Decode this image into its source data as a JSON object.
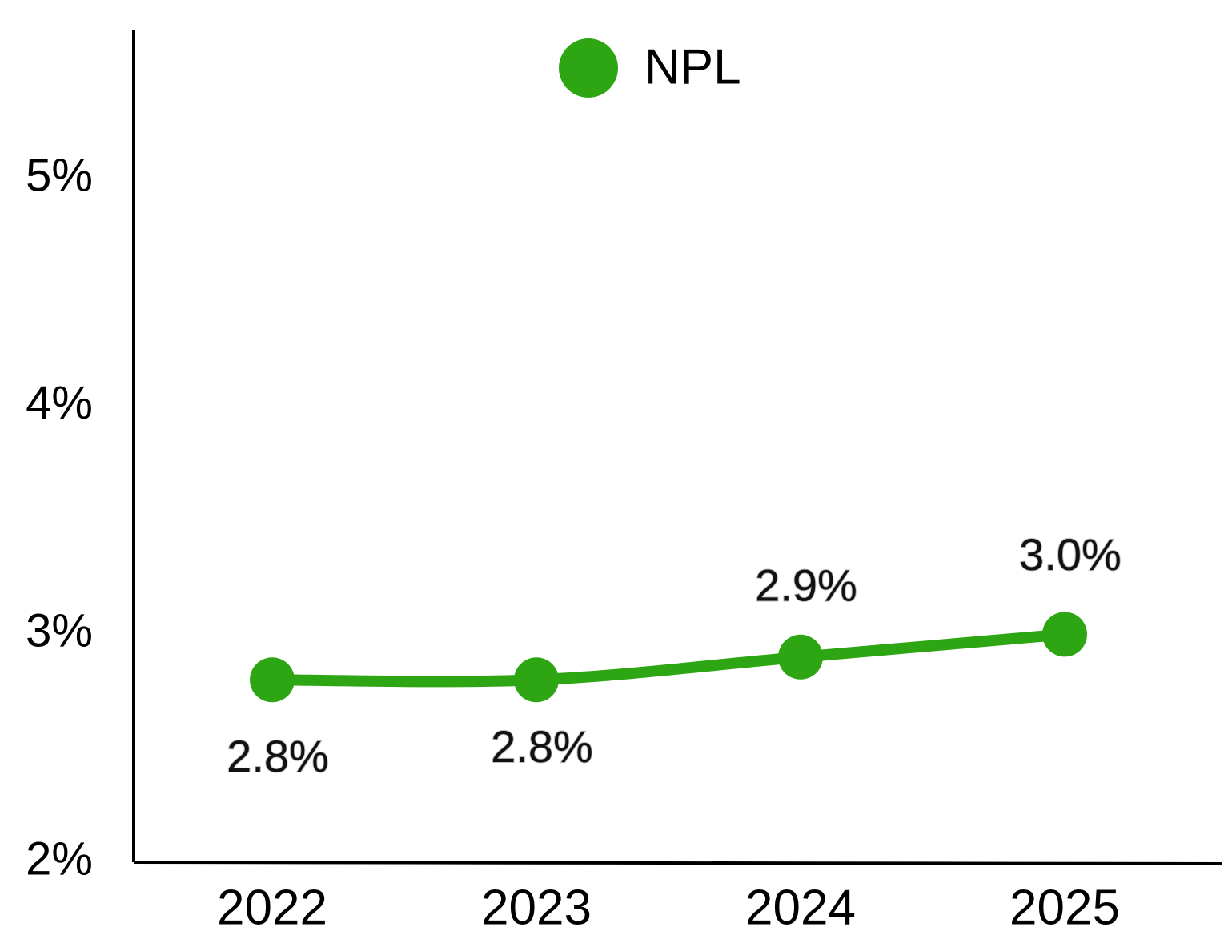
{
  "chart_data": {
    "type": "line",
    "categories": [
      "2022",
      "2023",
      "2024",
      "2025"
    ],
    "series": [
      {
        "name": "NPL",
        "color": "#2ea614",
        "values": [
          2.8,
          2.8,
          2.9,
          3.0
        ],
        "value_labels": [
          "2.8%",
          "2.8%",
          "2.9%",
          "3.0%"
        ]
      }
    ],
    "ylim": [
      2,
      5.65
    ],
    "yticks": [
      {
        "value": 2,
        "label": "2%"
      },
      {
        "value": 3,
        "label": "3%"
      },
      {
        "value": 4,
        "label": "4%"
      },
      {
        "value": 5,
        "label": "5%"
      }
    ],
    "grid": false,
    "legend": "top"
  }
}
